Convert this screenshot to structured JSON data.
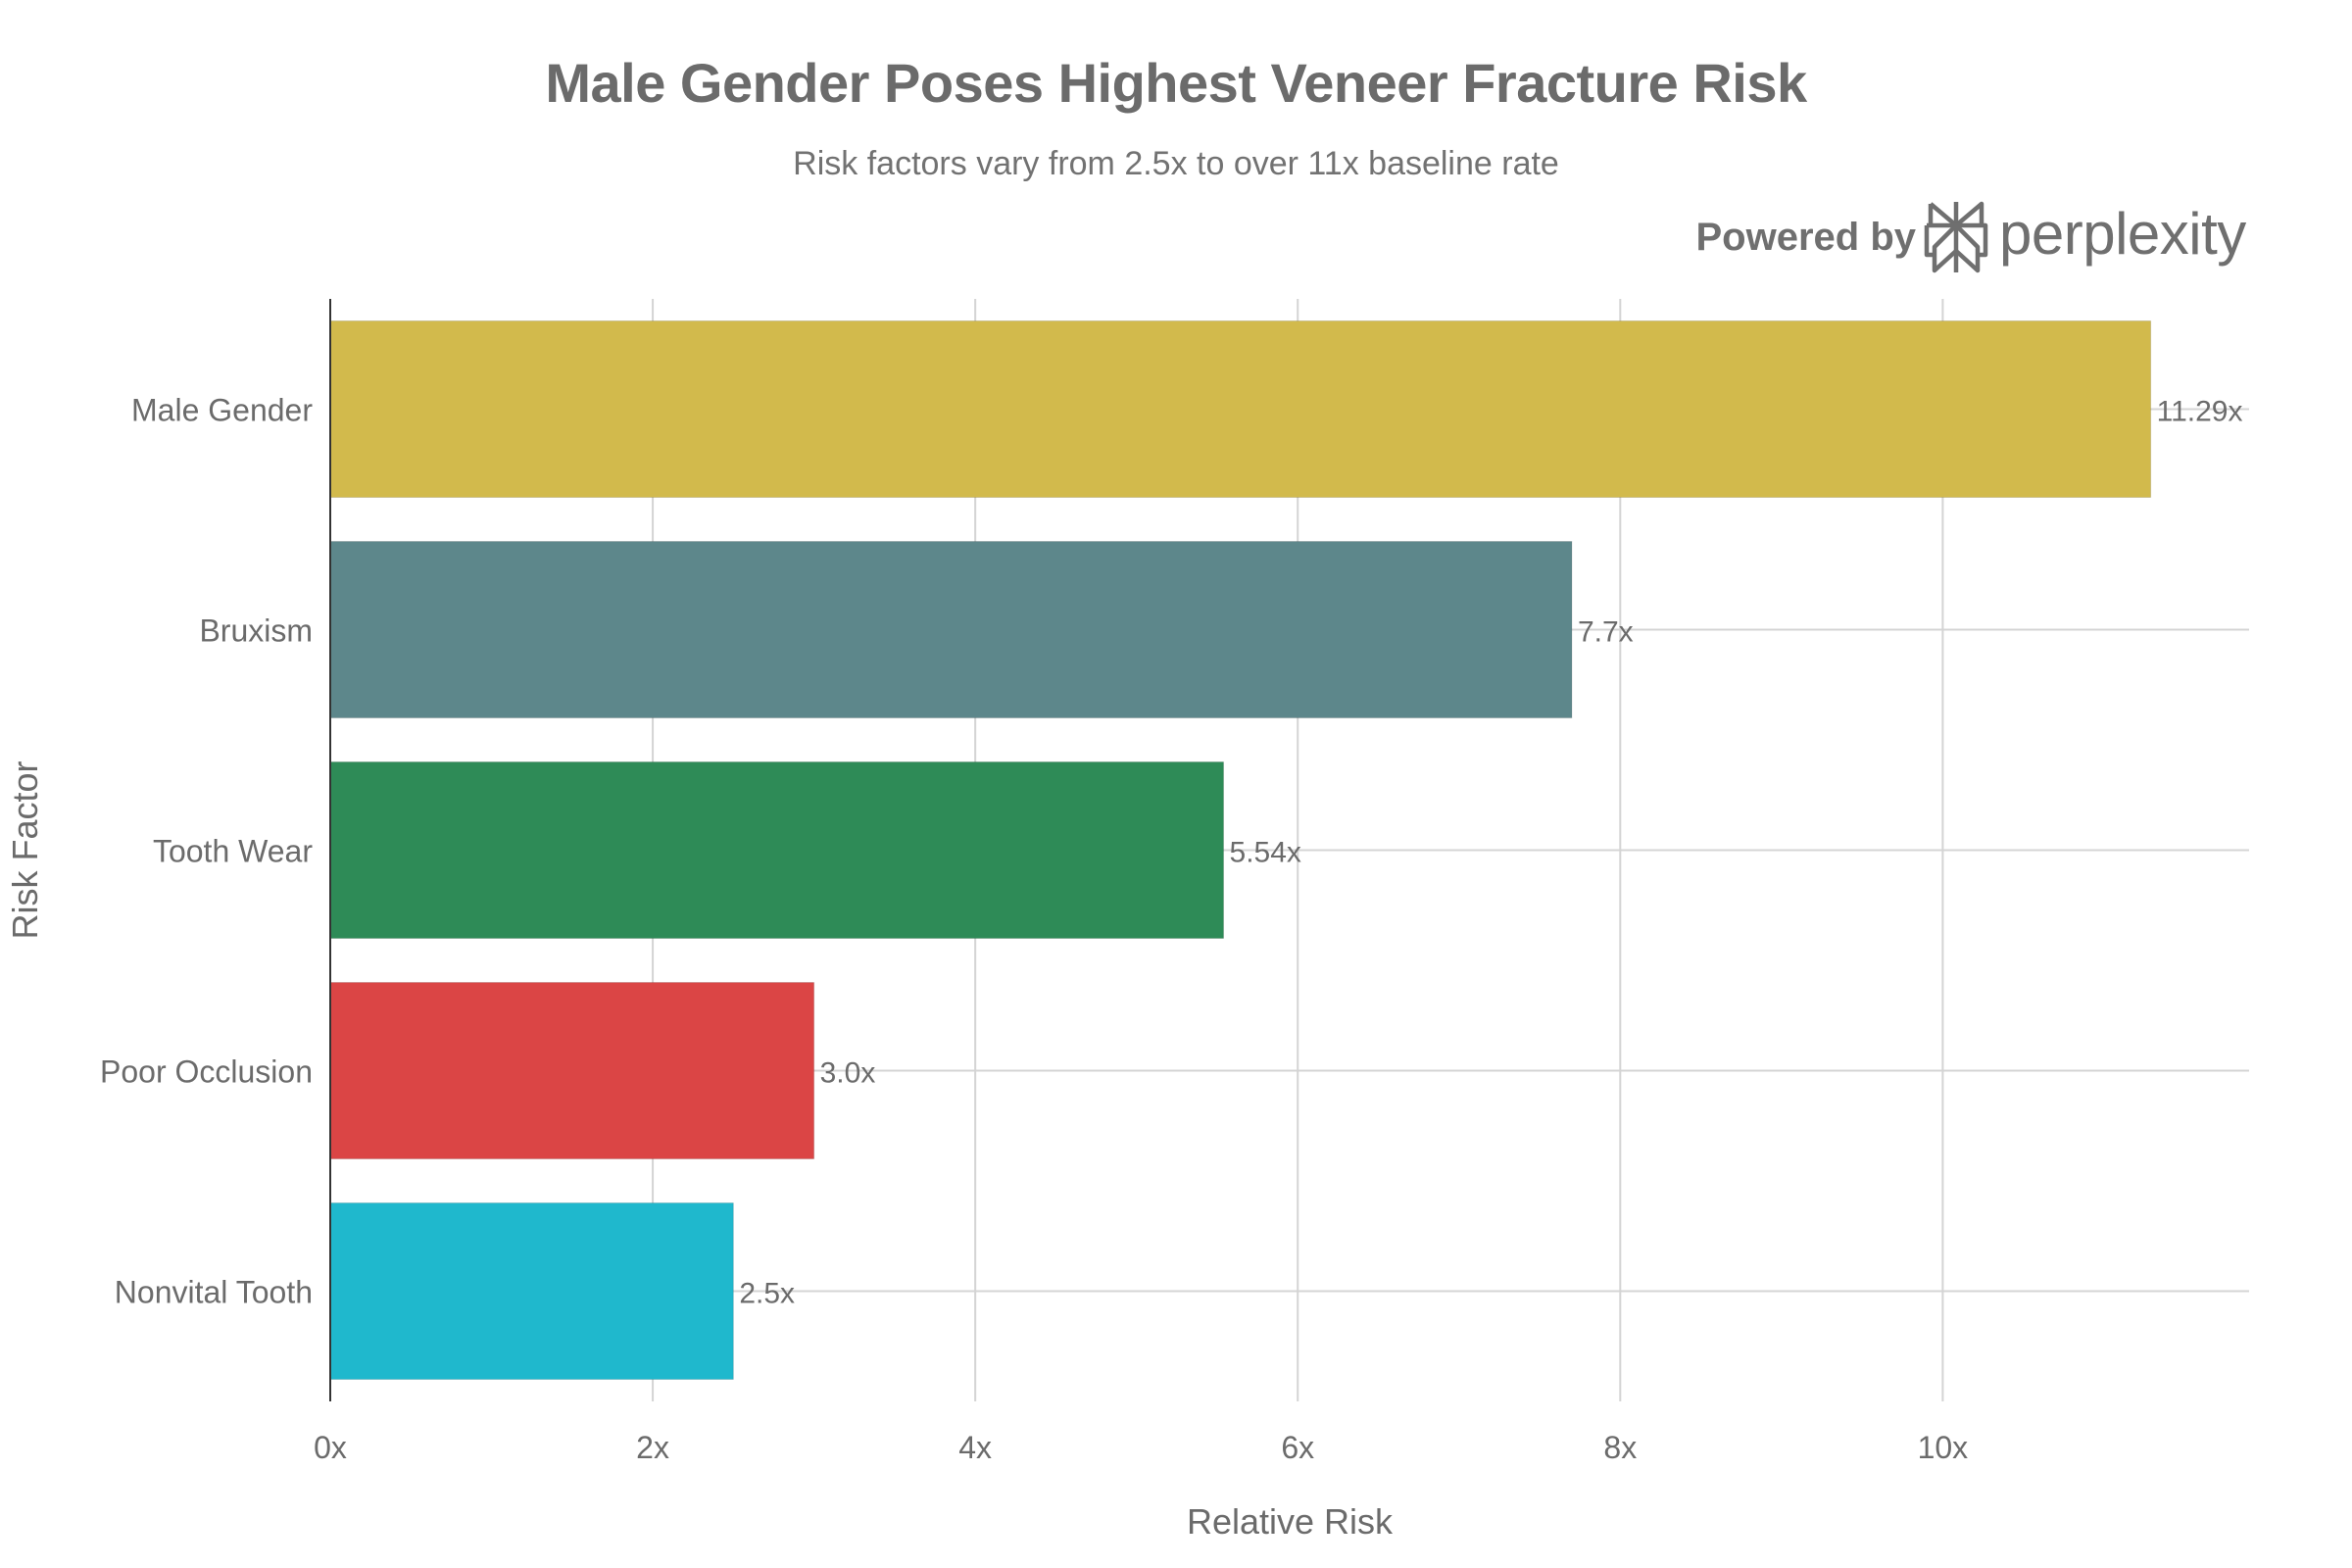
{
  "chart_data": {
    "type": "bar",
    "orientation": "horizontal",
    "title": "Male Gender Poses Highest Veneer Fracture Risk",
    "subtitle": "Risk factors vary from 2.5x to over 11x baseline rate",
    "xlabel": "Relative Risk",
    "ylabel": "Risk Factor",
    "categories": [
      "Male Gender",
      "Bruxism",
      "Tooth Wear",
      "Poor Occlusion",
      "Nonvital Tooth"
    ],
    "values": [
      11.29,
      7.7,
      5.54,
      3.0,
      2.5
    ],
    "value_labels": [
      "11.29x",
      "7.7x",
      "5.54x",
      "3.0x",
      "2.5x"
    ],
    "colors": [
      "#D2BA4C",
      "#5D878B",
      "#2E8B57",
      "#DB4545",
      "#1FB8CD"
    ],
    "xlim": [
      0,
      11.9
    ],
    "xticks": [
      0,
      2,
      4,
      6,
      8,
      10
    ],
    "xtick_labels": [
      "0x",
      "2x",
      "4x",
      "6x",
      "8x",
      "10x"
    ],
    "grid": true,
    "legend": "none"
  },
  "branding": {
    "powered_by": "Powered by",
    "name": "perplexity",
    "logo_icon": "perplexity-logo-icon"
  }
}
